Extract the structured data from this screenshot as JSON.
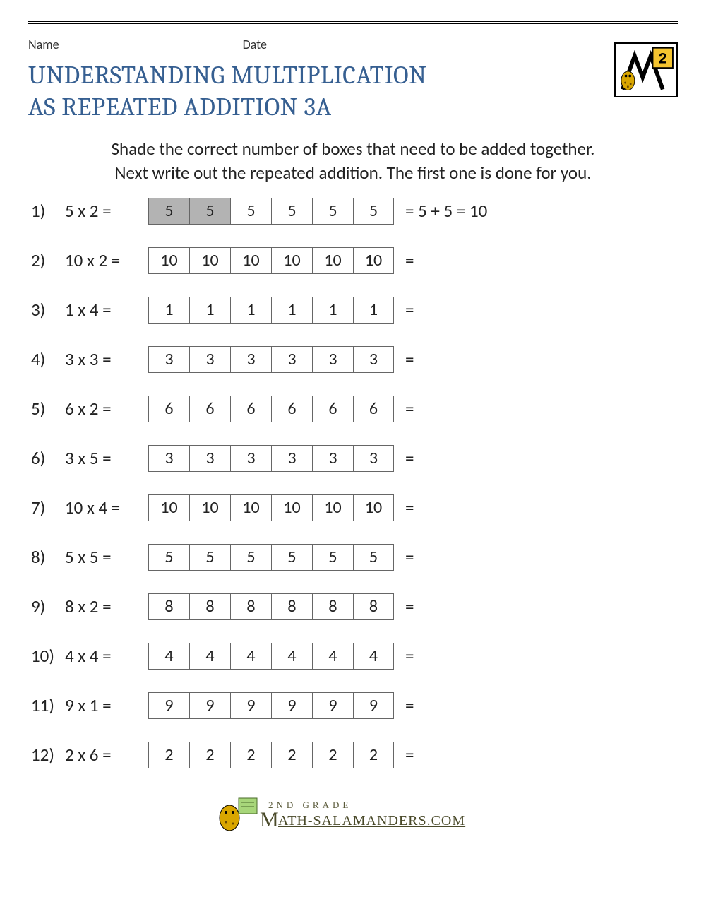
{
  "header": {
    "name_label": "Name",
    "date_label": "Date"
  },
  "title_line1": "UNDERSTANDING MULTIPLICATION",
  "title_line2": "AS REPEATED ADDITION 3A",
  "title_color": "#365f91",
  "instructions_line1": "Shade the correct number of boxes that need to be added together.",
  "instructions_line2": "Next write out the repeated addition. The first one is done for you.",
  "shaded_color": "#b3b3b3",
  "box_border_color": "#666666",
  "problems": [
    {
      "n": "1)",
      "expr": "5 x 2 =",
      "value": "5",
      "shaded": 2,
      "answer": "= 5 + 5 = 10"
    },
    {
      "n": "2)",
      "expr": "10 x 2 =",
      "value": "10",
      "shaded": 0,
      "answer": "="
    },
    {
      "n": "3)",
      "expr": "1 x 4 =",
      "value": "1",
      "shaded": 0,
      "answer": "="
    },
    {
      "n": "4)",
      "expr": "3 x 3 =",
      "value": "3",
      "shaded": 0,
      "answer": "="
    },
    {
      "n": "5)",
      "expr": "6 x 2 =",
      "value": "6",
      "shaded": 0,
      "answer": "="
    },
    {
      "n": "6)",
      "expr": "3 x 5 =",
      "value": "3",
      "shaded": 0,
      "answer": "="
    },
    {
      "n": "7)",
      "expr": "10 x 4 =",
      "value": "10",
      "shaded": 0,
      "answer": "="
    },
    {
      "n": "8)",
      "expr": "5 x 5 =",
      "value": "5",
      "shaded": 0,
      "answer": "="
    },
    {
      "n": "9)",
      "expr": "8 x 2 =",
      "value": "8",
      "shaded": 0,
      "answer": "="
    },
    {
      "n": "10)",
      "expr": "4 x 4 =",
      "value": "4",
      "shaded": 0,
      "answer": "="
    },
    {
      "n": "11)",
      "expr": "9 x 1 =",
      "value": "9",
      "shaded": 0,
      "answer": "="
    },
    {
      "n": "12)",
      "expr": "2 x 6 =",
      "value": "2",
      "shaded": 0,
      "answer": "="
    }
  ],
  "box_count": 6,
  "footer": {
    "grade": "2ND GRADE",
    "site_prefix": "M",
    "site": "ATH-SALAMANDERS.COM"
  },
  "logo": {
    "badge_number": "2",
    "badge_bg": "#f4c430",
    "salamander_color": "#d9a600"
  }
}
